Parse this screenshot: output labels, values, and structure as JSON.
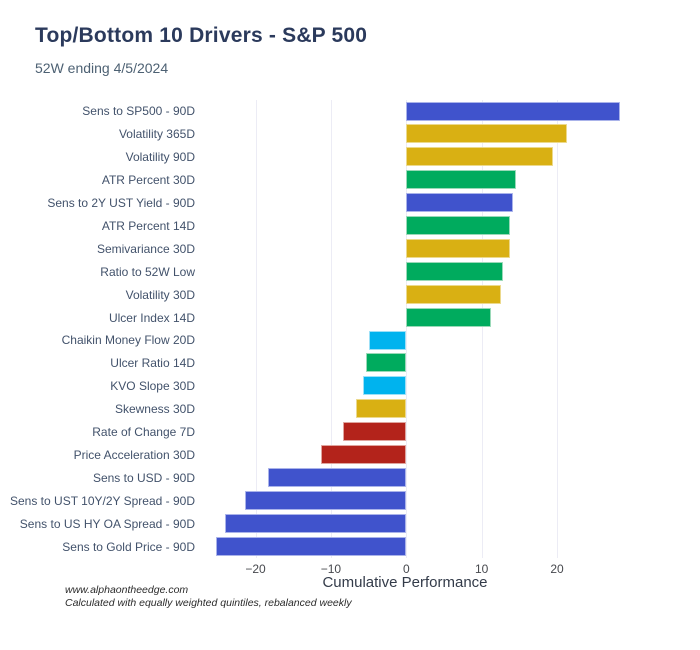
{
  "header": {
    "title": "Top/Bottom 10 Drivers - S&P 500",
    "subtitle": "52W ending 4/5/2024"
  },
  "footer": {
    "line1": "www.alphaontheedge.com",
    "line2": "Calculated with equally weighted quintiles, rebalanced weekly"
  },
  "chart_data": {
    "type": "bar",
    "orientation": "horizontal",
    "title": "Top/Bottom 10 Drivers - S&P 500",
    "subtitle": "52W ending 4/5/2024",
    "xlabel": "Cumulative Performance",
    "xlim": [
      -26.7,
      31.0
    ],
    "grid": true,
    "legend": "none",
    "xticks": [
      {
        "v": -20,
        "label": "−20"
      },
      {
        "v": -10,
        "label": "−10"
      },
      {
        "v": 0,
        "label": "0"
      },
      {
        "v": 10,
        "label": "10"
      },
      {
        "v": 20,
        "label": "20"
      }
    ],
    "categories": [
      "Sens to SP500 - 90D",
      "Volatility 365D",
      "Volatility 90D",
      "ATR Percent 30D",
      "Sens to 2Y UST Yield - 90D",
      "ATR Percent 14D",
      "Semivariance 30D",
      "Ratio to 52W Low",
      "Volatility 30D",
      "Ulcer Index 14D",
      "Chaikin Money Flow 20D",
      "Ulcer Ratio 14D",
      "KVO Slope 30D",
      "Skewness 30D",
      "Rate of Change 7D",
      "Price Acceleration 30D",
      "Sens to USD - 90D",
      "Sens to UST 10Y/2Y Spread - 90D",
      "Sens to US HY OA Spread - 90D",
      "Sens to Gold Price - 90D"
    ],
    "values": [
      28.4,
      21.3,
      19.5,
      14.5,
      14.1,
      13.8,
      13.7,
      12.8,
      12.5,
      11.2,
      -4.9,
      -5.3,
      -5.7,
      -6.7,
      -8.4,
      -11.3,
      -18.4,
      -21.4,
      -24.0,
      -25.2
    ],
    "bar_colors": [
      "blue",
      "gold",
      "gold",
      "green",
      "blue",
      "green",
      "gold",
      "green",
      "gold",
      "green",
      "cyan",
      "green",
      "cyan",
      "gold",
      "red",
      "red",
      "blue",
      "blue",
      "blue",
      "blue"
    ],
    "palette": {
      "blue": {
        "fill": "#4053cc",
        "border": "#aab3ea"
      },
      "gold": {
        "fill": "#d9b013",
        "border": "#ecd98c"
      },
      "green": {
        "fill": "#00ab5e",
        "border": "#9ad9b8"
      },
      "cyan": {
        "fill": "#00b3ee",
        "border": "#9ce0f7"
      },
      "red": {
        "fill": "#b3231b",
        "border": "#dfa49e"
      }
    }
  }
}
